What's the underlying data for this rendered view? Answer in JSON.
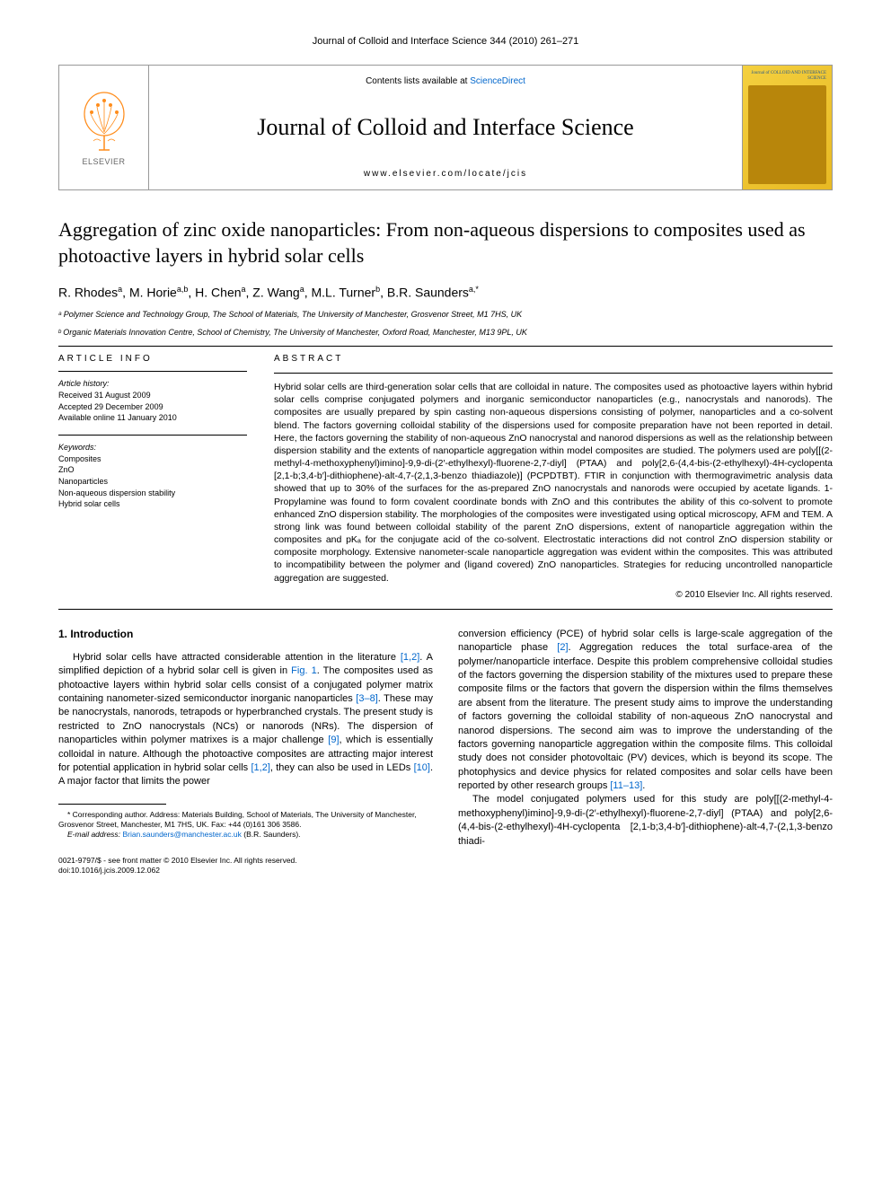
{
  "header": {
    "citation": "Journal of Colloid and Interface Science 344 (2010) 261–271"
  },
  "journal_box": {
    "publisher_label": "ELSEVIER",
    "contents_prefix": "Contents lists available at ",
    "contents_link": "ScienceDirect",
    "journal_name": "Journal of Colloid and Interface Science",
    "journal_url": "www.elsevier.com/locate/jcis",
    "cover_text": "Journal of COLLOID AND INTERFACE SCIENCE"
  },
  "article": {
    "title": "Aggregation of zinc oxide nanoparticles: From non-aqueous dispersions to composites used as photoactive layers in hybrid solar cells",
    "authors_html": "R. Rhodes<sup>a</sup>, M. Horie<sup>a,b</sup>, H. Chen<sup>a</sup>, Z. Wang<sup>a</sup>, M.L. Turner<sup>b</sup>, B.R. Saunders<sup>a,*</sup>",
    "affiliations": [
      "ᵃ Polymer Science and Technology Group, The School of Materials, The University of Manchester, Grosvenor Street, M1 7HS, UK",
      "ᵇ Organic Materials Innovation Centre, School of Chemistry, The University of Manchester, Oxford Road, Manchester, M13 9PL, UK"
    ]
  },
  "article_info": {
    "heading": "ARTICLE INFO",
    "history_label": "Article history:",
    "history": "Received 31 August 2009\nAccepted 29 December 2009\nAvailable online 11 January 2010",
    "keywords_label": "Keywords:",
    "keywords": "Composites\nZnO\nNanoparticles\nNon-aqueous dispersion stability\nHybrid solar cells"
  },
  "abstract": {
    "heading": "ABSTRACT",
    "text": "Hybrid solar cells are third-generation solar cells that are colloidal in nature. The composites used as photoactive layers within hybrid solar cells comprise conjugated polymers and inorganic semiconductor nanoparticles (e.g., nanocrystals and nanorods). The composites are usually prepared by spin casting non-aqueous dispersions consisting of polymer, nanoparticles and a co-solvent blend. The factors governing colloidal stability of the dispersions used for composite preparation have not been reported in detail. Here, the factors governing the stability of non-aqueous ZnO nanocrystal and nanorod dispersions as well as the relationship between dispersion stability and the extents of nanoparticle aggregation within model composites are studied. The polymers used are poly[[(2-methyl-4-methoxyphenyl)imino]-9,9-di-(2′-ethylhexyl)-fluorene-2,7-diyl] (PTAA) and poly[2,6-(4,4-bis-(2-ethylhexyl)-4H-cyclopenta [2,1-b;3,4-b′]-dithiophene)-alt-4,7-(2,1,3-benzo thiadiazole)] (PCPDTBT). FTIR in conjunction with thermogravimetric analysis data showed that up to 30% of the surfaces for the as-prepared ZnO nanocrystals and nanorods were occupied by acetate ligands. 1-Propylamine was found to form covalent coordinate bonds with ZnO and this contributes the ability of this co-solvent to promote enhanced ZnO dispersion stability. The morphologies of the composites were investigated using optical microscopy, AFM and TEM. A strong link was found between colloidal stability of the parent ZnO dispersions, extent of nanoparticle aggregation within the composites and pKₐ for the conjugate acid of the co-solvent. Electrostatic interactions did not control ZnO dispersion stability or composite morphology. Extensive nanometer-scale nanoparticle aggregation was evident within the composites. This was attributed to incompatibility between the polymer and (ligand covered) ZnO nanoparticles. Strategies for reducing uncontrolled nanoparticle aggregation are suggested.",
    "copyright": "© 2010 Elsevier Inc. All rights reserved."
  },
  "body": {
    "section_heading": "1. Introduction",
    "col1_para": "Hybrid solar cells have attracted considerable attention in the literature [1,2]. A simplified depiction of a hybrid solar cell is given in Fig. 1. The composites used as photoactive layers within hybrid solar cells consist of a conjugated polymer matrix containing nanometer-sized semiconductor inorganic nanoparticles [3–8]. These may be nanocrystals, nanorods, tetrapods or hyperbranched crystals. The present study is restricted to ZnO nanocrystals (NCs) or nanorods (NRs). The dispersion of nanoparticles within polymer matrixes is a major challenge [9], which is essentially colloidal in nature. Although the photoactive composites are attracting major interest for potential application in hybrid solar cells [1,2], they can also be used in LEDs [10]. A major factor that limits the power",
    "col2_para1": "conversion efficiency (PCE) of hybrid solar cells is large-scale aggregation of the nanoparticle phase [2]. Aggregation reduces the total surface-area of the polymer/nanoparticle interface. Despite this problem comprehensive colloidal studies of the factors governing the dispersion stability of the mixtures used to prepare these composite films or the factors that govern the dispersion within the films themselves are absent from the literature. The present study aims to improve the understanding of factors governing the colloidal stability of non-aqueous ZnO nanocrystal and nanorod dispersions. The second aim was to improve the understanding of the factors governing nanoparticle aggregation within the composite films. This colloidal study does not consider photovoltaic (PV) devices, which is beyond its scope. The photophysics and device physics for related composites and solar cells have been reported by other research groups [11–13].",
    "col2_para2": "The model conjugated polymers used for this study are poly[[(2-methyl-4-methoxyphenyl)imino]-9,9-di-(2′-ethylhexyl)-fluorene-2,7-diyl] (PTAA) and poly[2,6-(4,4-bis-(2-ethylhexyl)-4H-cyclopenta [2,1-b;3,4-b′]-dithiophene)-alt-4,7-(2,1,3-benzo thiadi-"
  },
  "footnotes": {
    "corresponding": "* Corresponding author. Address: Materials Building, School of Materials, The University of Manchester, Grosvenor Street, Manchester, M1 7HS, UK. Fax: +44 (0)161 306 3586.",
    "email_label": "E-mail address:",
    "email": "Brian.saunders@manchester.ac.uk",
    "email_suffix": "(B.R. Saunders)."
  },
  "footer": {
    "line1": "0021-9797/$ - see front matter © 2010 Elsevier Inc. All rights reserved.",
    "line2": "doi:10.1016/j.jcis.2009.12.062"
  },
  "colors": {
    "link": "#0066cc",
    "text": "#000000",
    "border": "#999999",
    "cover_bg": "#f4d03f",
    "elsevier_orange": "#ff8c1a"
  }
}
